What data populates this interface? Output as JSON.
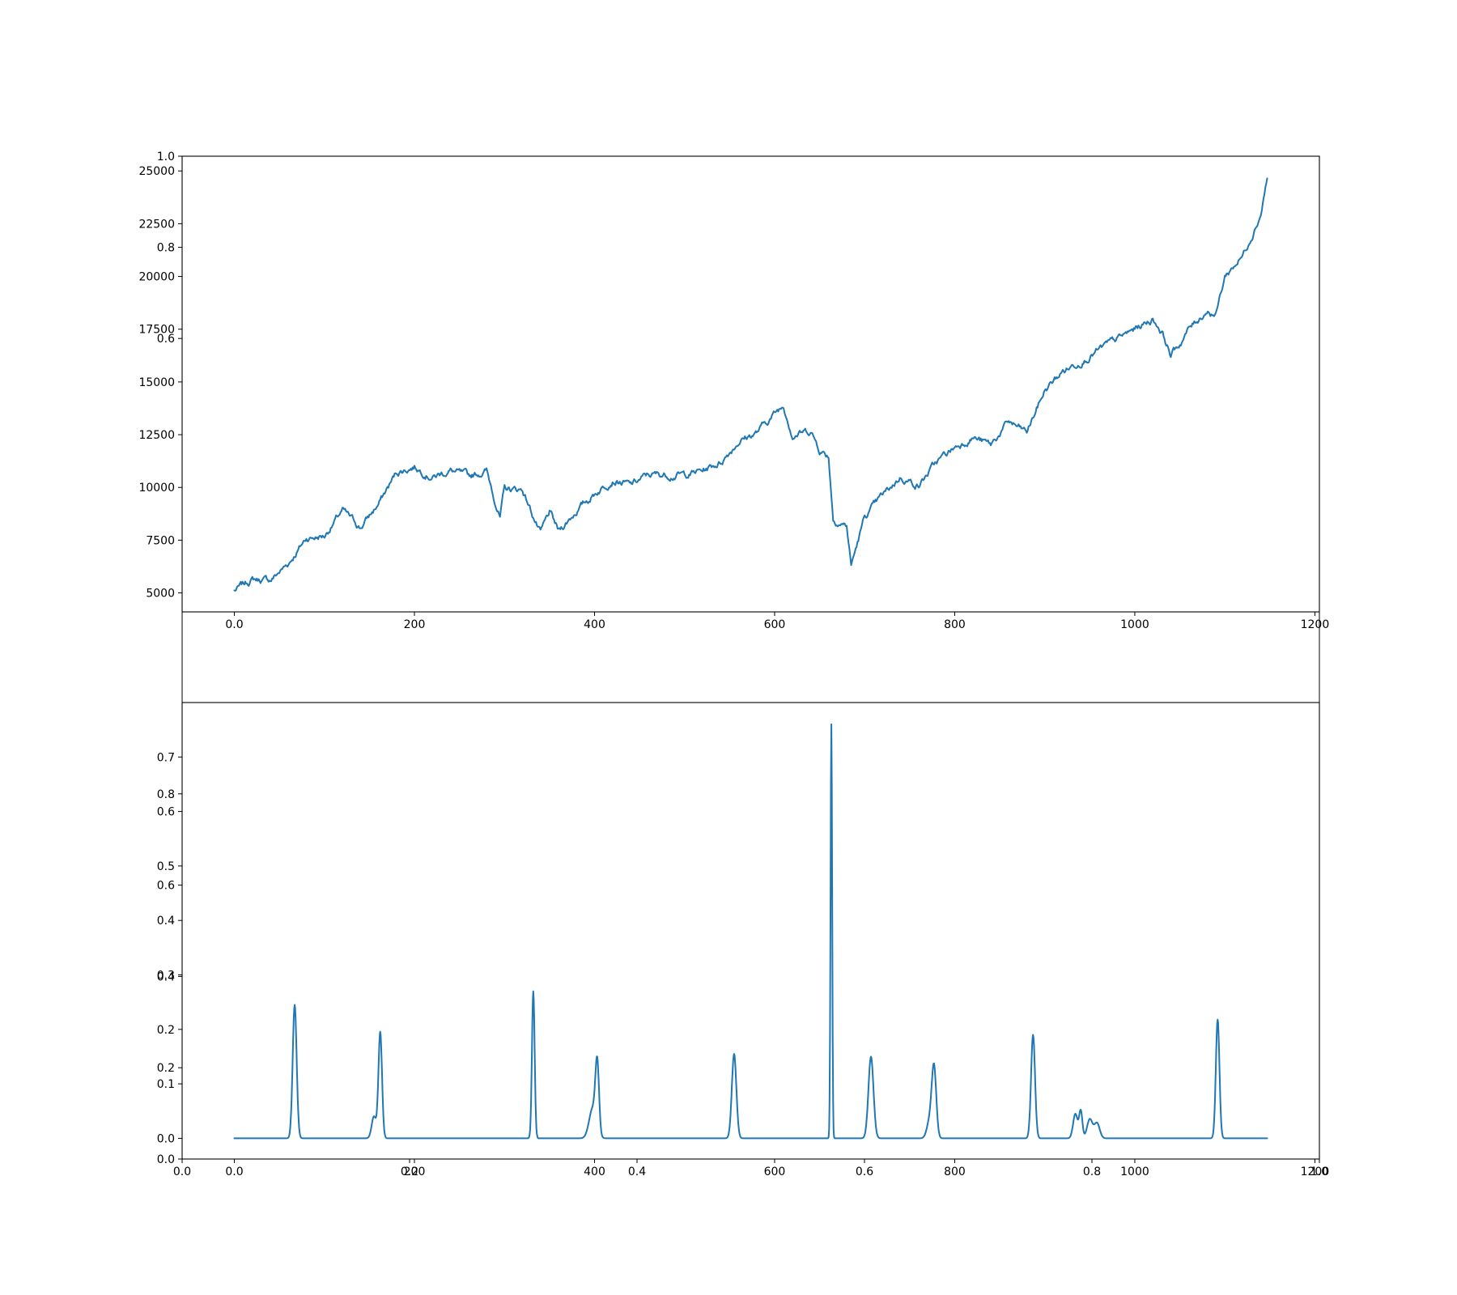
{
  "colors": {
    "series": "#1f77b4",
    "axis": "#000000",
    "background": "#ffffff"
  },
  "chart_data": [
    {
      "type": "line",
      "role": "top-panel",
      "title": "",
      "xlabel": "",
      "ylabel": "",
      "grid": false,
      "xlim": [
        -58,
        1205
      ],
      "ylim": [
        4100,
        25700
      ],
      "xticks": [
        0,
        200,
        400,
        600,
        800,
        1000,
        1200
      ],
      "yticks": [
        5000,
        7500,
        10000,
        12500,
        15000,
        17500,
        20000,
        22500,
        25000
      ],
      "overlay_axis": {
        "ylim": [
          0.0,
          1.0
        ],
        "yticks": [
          0.6,
          0.8,
          1.0
        ]
      },
      "x_key": [
        0,
        20,
        40,
        60,
        80,
        100,
        120,
        140,
        160,
        180,
        200,
        220,
        240,
        260,
        280,
        295,
        300,
        320,
        340,
        350,
        360,
        380,
        400,
        420,
        440,
        460,
        480,
        500,
        520,
        540,
        560,
        580,
        600,
        610,
        620,
        640,
        650,
        660,
        665,
        680,
        685,
        700,
        720,
        740,
        760,
        780,
        800,
        820,
        840,
        860,
        880,
        900,
        920,
        940,
        960,
        980,
        1000,
        1020,
        1030,
        1040,
        1050,
        1060,
        1080,
        1090,
        1100,
        1120,
        1140,
        1147
      ],
      "y_key": [
        5100,
        5650,
        5600,
        6400,
        7600,
        7700,
        8900,
        8100,
        9200,
        10700,
        11000,
        10500,
        10800,
        10500,
        10800,
        8600,
        9900,
        9900,
        7800,
        8800,
        7900,
        8900,
        9700,
        10400,
        10100,
        10600,
        10600,
        10600,
        10800,
        11200,
        12200,
        12600,
        13500,
        13900,
        12500,
        12700,
        11800,
        11500,
        8500,
        8200,
        6300,
        8600,
        9600,
        10500,
        10100,
        11200,
        11900,
        12400,
        12000,
        13100,
        12600,
        14600,
        15500,
        16000,
        16500,
        17000,
        17500,
        18000,
        17400,
        16300,
        16800,
        17500,
        18400,
        18200,
        20000,
        21000,
        23000,
        24700
      ],
      "noise_amplitude": 230
    },
    {
      "type": "line",
      "role": "bottom-panel",
      "title": "",
      "xlabel": "",
      "ylabel": "",
      "grid": false,
      "xlim": [
        -58,
        1205
      ],
      "ylim": [
        -0.038,
        0.8
      ],
      "xticks": [
        0,
        200,
        400,
        600,
        800,
        1000,
        1200
      ],
      "yticks": [
        0.0,
        0.1,
        0.2,
        0.3,
        0.4,
        0.5,
        0.6,
        0.7
      ],
      "overlay_axis": {
        "xlim": [
          0.0,
          1.0
        ],
        "xticks": [
          0.0,
          0.2,
          0.4,
          0.6,
          0.8,
          1.0
        ],
        "ylim": [
          0.0,
          1.0
        ],
        "yticks": [
          0.0,
          0.2,
          0.4,
          0.6,
          0.8
        ]
      },
      "x_range": [
        0,
        1147
      ],
      "peaks": [
        {
          "x": 67,
          "height": 0.245,
          "width": 2.2
        },
        {
          "x": 155,
          "height": 0.04,
          "width": 2.5
        },
        {
          "x": 162,
          "height": 0.195,
          "width": 2.0
        },
        {
          "x": 332,
          "height": 0.27,
          "width": 1.5
        },
        {
          "x": 398,
          "height": 0.055,
          "width": 4.0
        },
        {
          "x": 403,
          "height": 0.125,
          "width": 2.0
        },
        {
          "x": 555,
          "height": 0.155,
          "width": 2.5
        },
        {
          "x": 663,
          "height": 0.76,
          "width": 0.9
        },
        {
          "x": 707,
          "height": 0.15,
          "width": 2.8
        },
        {
          "x": 772,
          "height": 0.03,
          "width": 3.0
        },
        {
          "x": 777,
          "height": 0.13,
          "width": 2.5
        },
        {
          "x": 887,
          "height": 0.19,
          "width": 2.2
        },
        {
          "x": 934,
          "height": 0.045,
          "width": 2.5
        },
        {
          "x": 940,
          "height": 0.05,
          "width": 1.8
        },
        {
          "x": 950,
          "height": 0.035,
          "width": 3.0
        },
        {
          "x": 958,
          "height": 0.028,
          "width": 3.0
        },
        {
          "x": 1092,
          "height": 0.218,
          "width": 2.0
        }
      ]
    }
  ]
}
